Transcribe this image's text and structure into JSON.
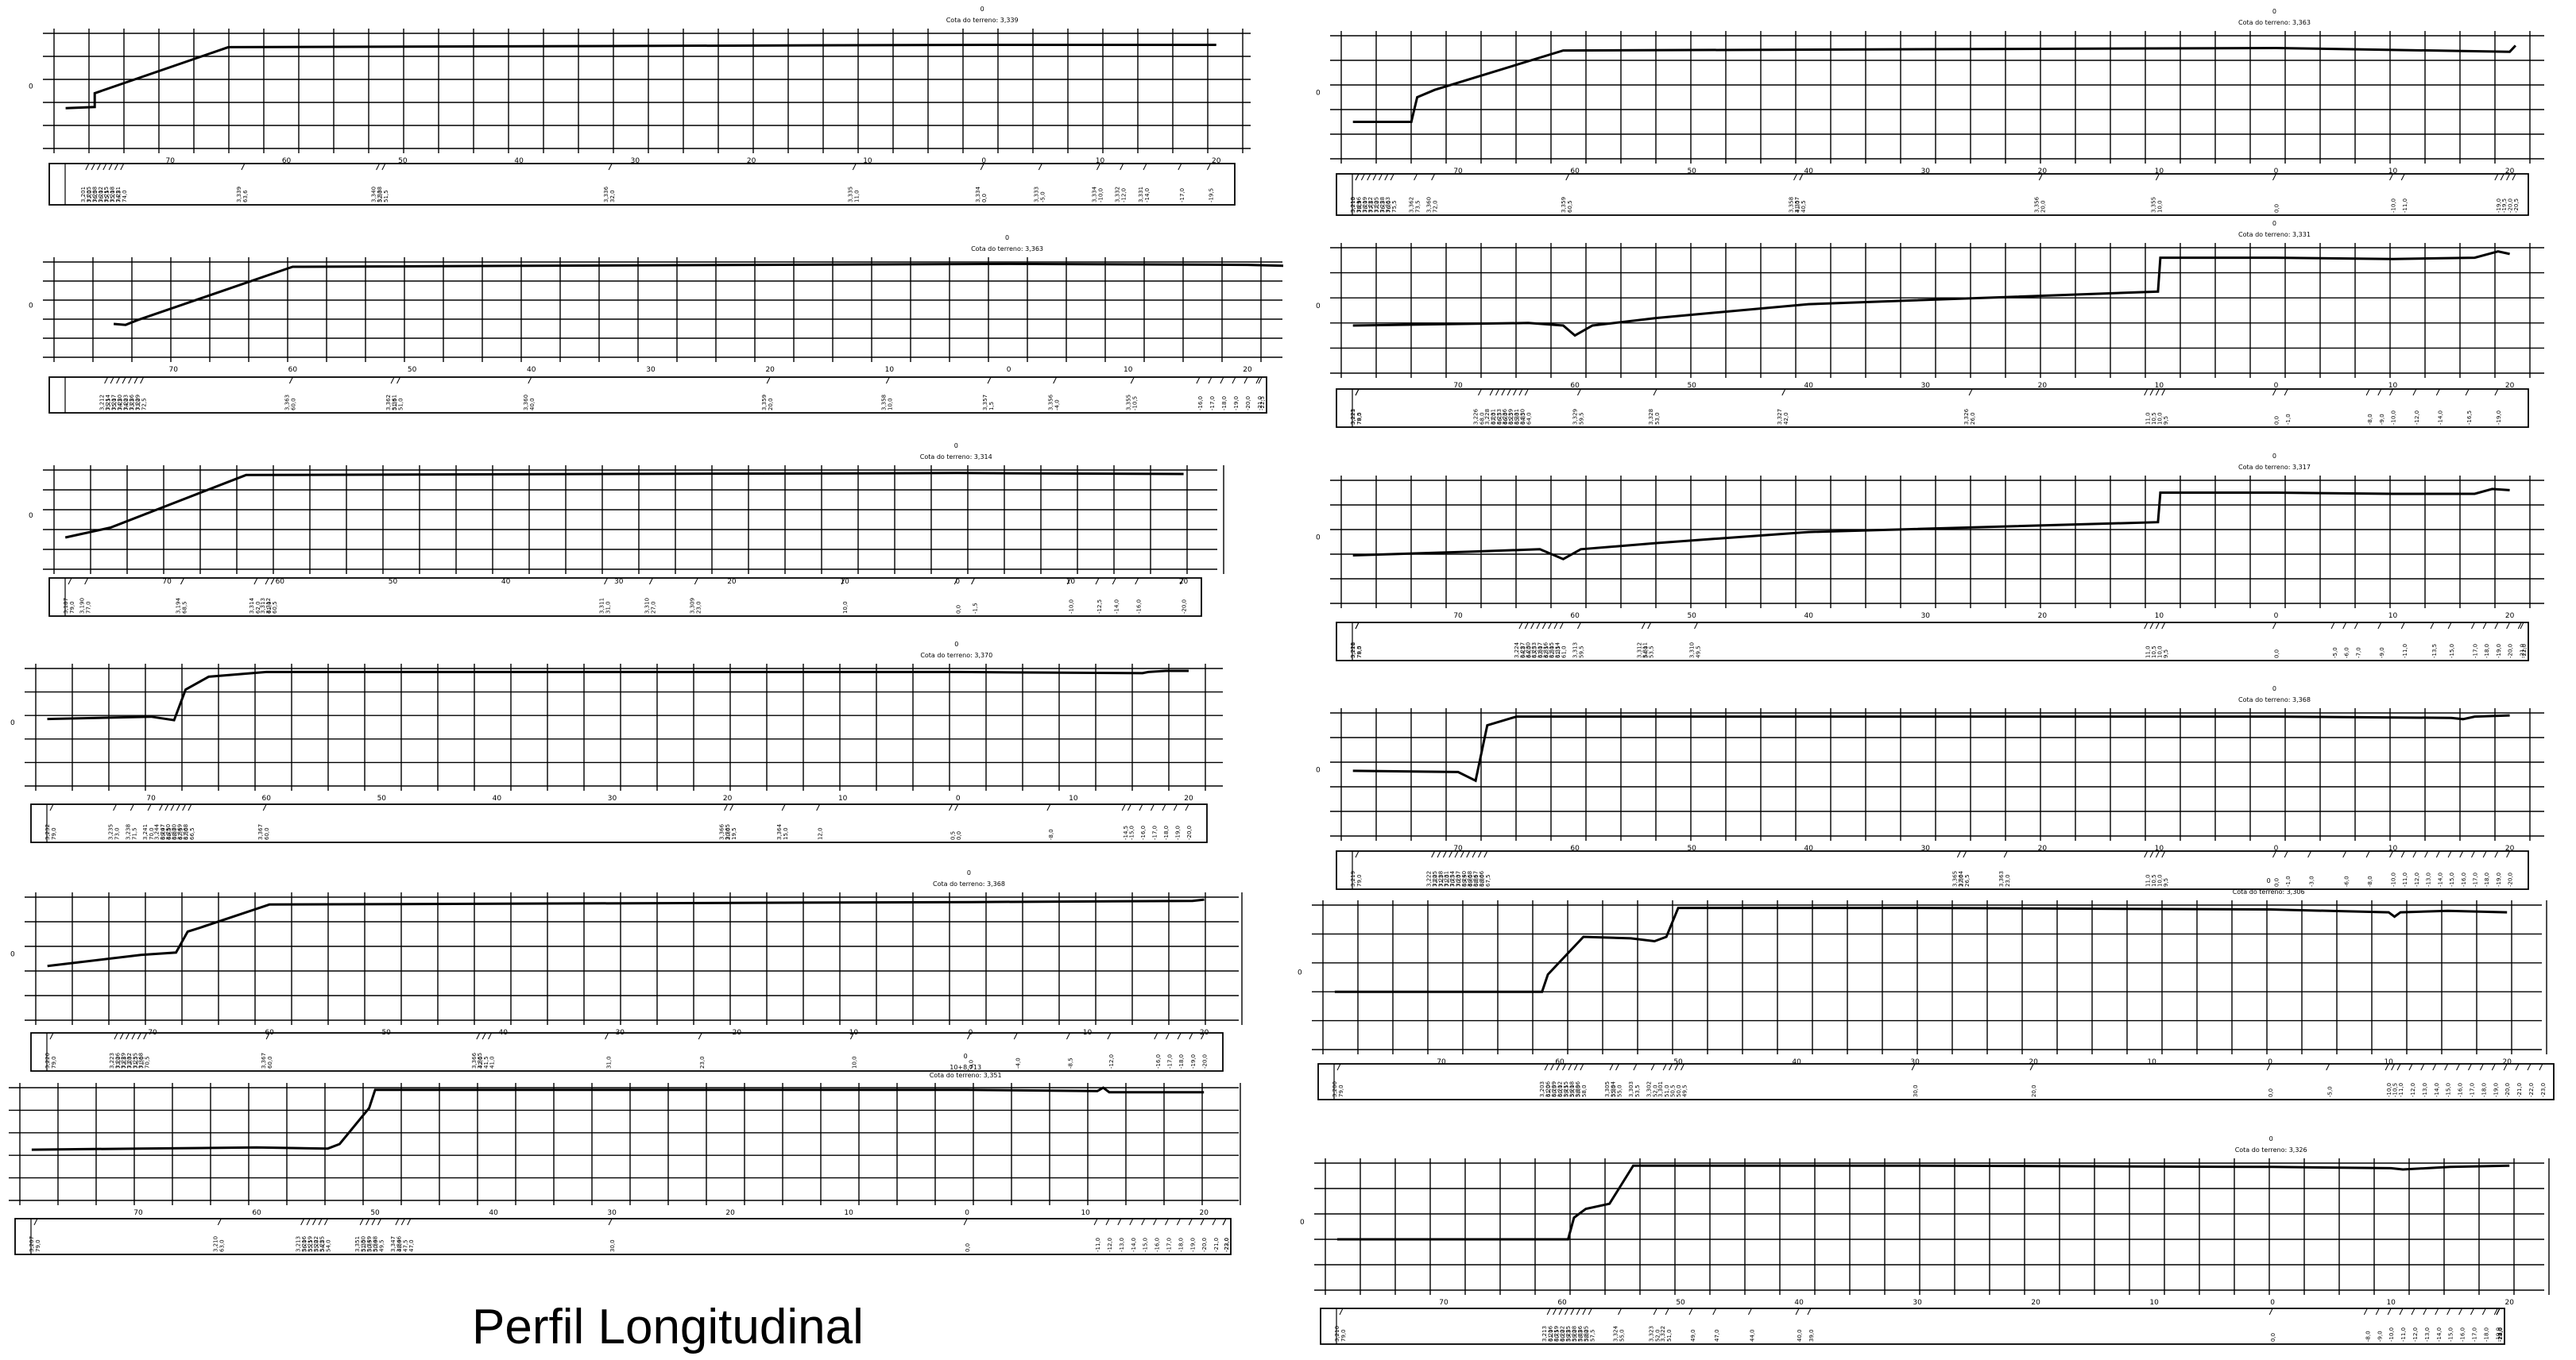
{
  "title": "Perfil Longitudinal",
  "colors": {
    "line": "#000000",
    "background": "#ffffff"
  },
  "panels": [
    {
      "terrain_label": "Cota do terreno: 3,339",
      "x_ticks": [
        "70",
        "60",
        "50",
        "40",
        "30",
        "20",
        "10",
        "0",
        "10",
        "20"
      ],
      "profile": [
        [
          79,
          0.35
        ],
        [
          76.5,
          0.36
        ],
        [
          76.5,
          0.48
        ],
        [
          65,
          0.88
        ],
        [
          0,
          0.9
        ],
        [
          -20,
          0.9
        ]
      ],
      "cota_tags": [
        "3,201",
        "3,205",
        "3,208",
        "3,212",
        "3,215",
        "3,218",
        "3,221",
        "3,339",
        "3,340",
        "3,338",
        "3,336",
        "3,335",
        "3,334",
        "3,333",
        "3,334",
        "3,332",
        "3,331"
      ],
      "distance_tags": [
        "77,0",
        "76,5",
        "76,0",
        "75,5",
        "75,0",
        "74,5",
        "74,0",
        "63,6",
        "52,0",
        "51,5",
        "32,0",
        "11,0",
        "0,0",
        "-5,0",
        "-10,0",
        "-12,0",
        "-14,0",
        "-17,0",
        "-19,5"
      ]
    },
    {
      "terrain_label": "Cota do terreno: 3,363",
      "x_ticks": [
        "70",
        "60",
        "50",
        "40",
        "30",
        "20",
        "10",
        "0",
        "10",
        "20"
      ],
      "profile": [
        [
          79,
          0.3
        ],
        [
          74,
          0.3
        ],
        [
          73.5,
          0.5
        ],
        [
          72,
          0.56
        ],
        [
          61,
          0.88
        ],
        [
          0,
          0.9
        ],
        [
          -20,
          0.87
        ],
        [
          -20.5,
          0.92
        ]
      ],
      "cota_tags": [
        "3,210",
        "3,213",
        "3,216",
        "3,219",
        "3,222",
        "3,225",
        "3,228",
        "3,363",
        "3,362",
        "3,360",
        "3,359",
        "3,358",
        "3,357",
        "3,356",
        "3,355"
      ],
      "distance_tags": [
        "78,9",
        "78,5",
        "78,0",
        "77,5",
        "77,0",
        "76,5",
        "76,0",
        "75,5",
        "73,5",
        "72,0",
        "60,5",
        "41,0",
        "40,5",
        "20,0",
        "10,0",
        "0,0",
        "-10,0",
        "-11,0",
        "-19,0",
        "-19,5",
        "-20,0",
        "-20,5"
      ]
    },
    {
      "terrain_label": "Cota do terreno: 3,363",
      "x_ticks": [
        "70",
        "60",
        "50",
        "40",
        "30",
        "20",
        "10",
        "0",
        "10",
        "20"
      ],
      "profile": [
        [
          75,
          0.35
        ],
        [
          74,
          0.34
        ],
        [
          73,
          0.39
        ],
        [
          60,
          0.95
        ],
        [
          0,
          0.98
        ],
        [
          -20,
          0.97
        ],
        [
          -23,
          0.96
        ]
      ],
      "cota_tags": [
        "3,212",
        "3,214",
        "3,217",
        "3,220",
        "3,223",
        "3,226",
        "3,229",
        "3,363",
        "3,362",
        "3,361",
        "3,360",
        "3,359",
        "3,358",
        "3,357",
        "3,356",
        "3,355"
      ],
      "distance_tags": [
        "75,5",
        "75,0",
        "74,5",
        "74,0",
        "73,5",
        "73,0",
        "72,5",
        "60,0",
        "51,5",
        "51,0",
        "40,0",
        "20,0",
        "10,0",
        "1,5",
        "-4,0",
        "-10,5",
        "-16,0",
        "-17,0",
        "-18,0",
        "-19,0",
        "-20,0",
        "-21,0",
        "-22,5"
      ]
    },
    {
      "terrain_label": "Cota do terreno: 3,331",
      "x_ticks": [
        "70",
        "60",
        "50",
        "40",
        "30",
        "20",
        "10",
        "0",
        "10",
        "20"
      ],
      "profile": [
        [
          79,
          0.38
        ],
        [
          64,
          0.4
        ],
        [
          61,
          0.38
        ],
        [
          60,
          0.3
        ],
        [
          58.5,
          0.38
        ],
        [
          53,
          0.44
        ],
        [
          40,
          0.55
        ],
        [
          10.1,
          0.65
        ],
        [
          9.9,
          0.92
        ],
        [
          0,
          0.92
        ],
        [
          -10,
          0.91
        ],
        [
          -17,
          0.92
        ],
        [
          -19,
          0.97
        ],
        [
          -20,
          0.95
        ]
      ],
      "cota_tags": [
        "3,221",
        "3,223",
        "3,226",
        "3,228",
        "3,231",
        "3,233",
        "3,236",
        "3,239",
        "3,331",
        "3,330",
        "3,329",
        "3,328",
        "3,327",
        "3,326"
      ],
      "distance_tags": [
        "79,0",
        "78,5",
        "68,0",
        "67,0",
        "66,5",
        "66,0",
        "65,5",
        "65,0",
        "64,5",
        "64,0",
        "59,5",
        "53,0",
        "42,0",
        "26,0",
        "11,0",
        "10,5",
        "10,0",
        "9,5",
        "0,0",
        "-1,0",
        "-8,0",
        "-9,0",
        "-10,0",
        "-12,0",
        "-14,0",
        "-16,5",
        "-19,0"
      ]
    },
    {
      "terrain_label": "Cota do terreno: 3,314",
      "x_ticks": [
        "70",
        "60",
        "50",
        "40",
        "30",
        "20",
        "10",
        "0",
        "10",
        "20"
      ],
      "profile": [
        [
          79,
          0.32
        ],
        [
          75,
          0.42
        ],
        [
          63,
          0.95
        ],
        [
          0,
          0.97
        ],
        [
          -20,
          0.96
        ]
      ],
      "cota_tags": [
        "3,187",
        "3,190",
        "3,194",
        "3,314",
        "3,313",
        "3,312",
        "3,311",
        "3,310",
        "3,309"
      ],
      "distance_tags": [
        "79,0",
        "77,0",
        "68,5",
        "62,0",
        "61,0",
        "60,5",
        "31,0",
        "27,0",
        "23,0",
        "10,0",
        "0,0",
        "-1,5",
        "-10,0",
        "-12,5",
        "-14,0",
        "-16,0",
        "-20,0"
      ]
    },
    {
      "terrain_label": "Cota do terreno: 3,317",
      "x_ticks": [
        "70",
        "60",
        "50",
        "40",
        "30",
        "20",
        "10",
        "0",
        "10",
        "20"
      ],
      "profile": [
        [
          79,
          0.39
        ],
        [
          69,
          0.42
        ],
        [
          63,
          0.44
        ],
        [
          61,
          0.36
        ],
        [
          59.5,
          0.44
        ],
        [
          53,
          0.49
        ],
        [
          40,
          0.58
        ],
        [
          10.1,
          0.66
        ],
        [
          9.9,
          0.9
        ],
        [
          0,
          0.9
        ],
        [
          -10,
          0.89
        ],
        [
          -17,
          0.89
        ],
        [
          -18.5,
          0.93
        ],
        [
          -20,
          0.92
        ]
      ],
      "cota_tags": [
        "3,218",
        "3,221",
        "3,224",
        "3,227",
        "3,230",
        "3,233",
        "3,317",
        "3,316",
        "3,315",
        "3,314",
        "3,313",
        "3,312",
        "3,311",
        "3,310"
      ],
      "distance_tags": [
        "79,0",
        "78,5",
        "64,5",
        "64,0",
        "63,5",
        "63,0",
        "62,5",
        "62,0",
        "61,5",
        "61,0",
        "59,5",
        "54,0",
        "53,5",
        "49,5",
        "11,0",
        "10,5",
        "10,0",
        "9,5",
        "0,0",
        "-5,0",
        "-6,0",
        "-7,0",
        "-9,0",
        "-11,0",
        "-13,5",
        "-15,0",
        "-17,0",
        "-18,0",
        "-19,0",
        "-20,0",
        "-21,0",
        "-22,0"
      ]
    },
    {
      "terrain_label": "Cota do terreno: 3,370",
      "x_ticks": [
        "70",
        "60",
        "50",
        "40",
        "30",
        "20",
        "10",
        "0",
        "10",
        "20"
      ],
      "profile": [
        [
          79,
          0.57
        ],
        [
          70,
          0.59
        ],
        [
          68,
          0.56
        ],
        [
          67,
          0.82
        ],
        [
          65,
          0.93
        ],
        [
          60,
          0.97
        ],
        [
          0,
          0.97
        ],
        [
          -16,
          0.96
        ],
        [
          -16.5,
          0.97
        ],
        [
          -18,
          0.98
        ],
        [
          -20,
          0.98
        ]
      ],
      "cota_tags": [
        "3,232",
        "3,235",
        "3,238",
        "3,241",
        "3,244",
        "3,247",
        "3,250",
        "3,370",
        "3,369",
        "3,368",
        "3,367",
        "3,366",
        "3,365",
        "3,364"
      ],
      "distance_tags": [
        "79,0",
        "73,0",
        "71,5",
        "70,0",
        "69,0",
        "68,5",
        "68,0",
        "67,5",
        "67,0",
        "66,5",
        "60,0",
        "20,0",
        "19,5",
        "15,0",
        "12,0",
        "0,5",
        "0,0",
        "-8,0",
        "-14,5",
        "-15,0",
        "-16,0",
        "-17,0",
        "-18,0",
        "-19,0",
        "-20,0"
      ]
    },
    {
      "terrain_label": "Cota do terreno: 3,368",
      "x_ticks": [
        "70",
        "60",
        "50",
        "40",
        "30",
        "20",
        "10",
        "0",
        "10",
        "20"
      ],
      "profile": [
        [
          79,
          0.53
        ],
        [
          70,
          0.52
        ],
        [
          68.5,
          0.45
        ],
        [
          67.5,
          0.9
        ],
        [
          65,
          0.97
        ],
        [
          0,
          0.97
        ],
        [
          -15,
          0.96
        ],
        [
          -16,
          0.95
        ],
        [
          -17,
          0.97
        ],
        [
          -20,
          0.98
        ]
      ],
      "cota_tags": [
        "3,219",
        "3,222",
        "3,225",
        "3,228",
        "3,231",
        "3,234",
        "3,237",
        "3,240",
        "3,368",
        "3,367",
        "3,366",
        "3,365",
        "3,364",
        "3,363"
      ],
      "distance_tags": [
        "79,0",
        "72,0",
        "71,5",
        "71,0",
        "70,5",
        "70,0",
        "69,5",
        "69,0",
        "68,5",
        "68,0",
        "67,5",
        "27,0",
        "26,5",
        "23,0",
        "11,0",
        "10,5",
        "10,0",
        "9,5",
        "0,0",
        "-1,0",
        "-3,0",
        "-6,0",
        "-8,0",
        "-10,0",
        "-11,0",
        "-12,0",
        "-13,0",
        "-14,0",
        "-15,0",
        "-16,0",
        "-17,0",
        "-18,0",
        "-19,0",
        "-20,0"
      ]
    },
    {
      "terrain_label": "Cota do terreno: 3,368",
      "x_ticks": [
        "70",
        "60",
        "50",
        "40",
        "30",
        "20",
        "10",
        "0",
        "10",
        "20"
      ],
      "profile": [
        [
          79,
          0.44
        ],
        [
          71,
          0.53
        ],
        [
          68,
          0.55
        ],
        [
          67,
          0.72
        ],
        [
          66,
          0.75
        ],
        [
          60,
          0.94
        ],
        [
          0,
          0.96
        ],
        [
          -19,
          0.97
        ],
        [
          -20,
          0.98
        ]
      ],
      "cota_tags": [
        "3,220",
        "3,223",
        "3,226",
        "3,229",
        "3,232",
        "3,235",
        "3,368",
        "3,367",
        "3,366",
        "3,365"
      ],
      "distance_tags": [
        "79,0",
        "73,0",
        "72,5",
        "72,0",
        "71,5",
        "71,0",
        "70,5",
        "60,0",
        "42,0",
        "41,5",
        "41,0",
        "31,0",
        "23,0",
        "10,0",
        "0,0",
        "-4,0",
        "-8,5",
        "-12,0",
        "-16,0",
        "-17,0",
        "-18,0",
        "-19,0",
        "-20,0"
      ]
    },
    {
      "terrain_label": "Cota do terreno: 3,306",
      "x_ticks": [
        "70",
        "60",
        "50",
        "40",
        "30",
        "20",
        "10",
        "0",
        "10",
        "20"
      ],
      "profile": [
        [
          79,
          0.4
        ],
        [
          62,
          0.4
        ],
        [
          61.5,
          0.4
        ],
        [
          61,
          0.52
        ],
        [
          58,
          0.78
        ],
        [
          54,
          0.77
        ],
        [
          52,
          0.75
        ],
        [
          51,
          0.78
        ],
        [
          50,
          0.98
        ],
        [
          30,
          0.98
        ],
        [
          0,
          0.97
        ],
        [
          -10,
          0.95
        ],
        [
          -10.5,
          0.92
        ],
        [
          -11,
          0.95
        ],
        [
          -15,
          0.96
        ],
        [
          -20,
          0.95
        ]
      ],
      "cota_tags": [
        "3,200",
        "3,203",
        "3,206",
        "3,209",
        "3,212",
        "3,215",
        "3,218",
        "3,306",
        "3,305",
        "3,304",
        "3,303",
        "3,302",
        "3,301"
      ],
      "distance_tags": [
        "79,0",
        "61,0",
        "60,5",
        "60,0",
        "59,5",
        "59,0",
        "58,5",
        "58,0",
        "55,5",
        "55,0",
        "53,5",
        "52,0",
        "51,0",
        "50,5",
        "50,0",
        "49,5",
        "30,0",
        "20,0",
        "0,0",
        "-5,0",
        "-10,0",
        "-10,5",
        "-11,0",
        "-12,0",
        "-13,0",
        "-14,0",
        "-15,0",
        "-16,0",
        "-17,0",
        "-18,0",
        "-19,0",
        "-20,0",
        "-21,0",
        "-22,0",
        "-23,0"
      ]
    },
    {
      "terrain_label": "10+8,713\nCota do terreno: 3,351",
      "x_ticks": [
        "70",
        "60",
        "50",
        "40",
        "30",
        "20",
        "10",
        "0",
        "10",
        "20"
      ],
      "profile": [
        [
          79,
          0.45
        ],
        [
          70,
          0.46
        ],
        [
          60,
          0.47
        ],
        [
          54,
          0.46
        ],
        [
          53,
          0.5
        ],
        [
          50.5,
          0.82
        ],
        [
          50,
          0.98
        ],
        [
          30,
          0.98
        ],
        [
          0,
          0.98
        ],
        [
          -11,
          0.97
        ],
        [
          -11.5,
          1.0
        ],
        [
          -12,
          0.96
        ],
        [
          -20,
          0.96
        ]
      ],
      "cota_tags": [
        "3,207",
        "3,210",
        "3,213",
        "3,216",
        "3,219",
        "3,222",
        "3,225",
        "3,351",
        "3,350",
        "3,349",
        "3,348",
        "3,347",
        "3,346"
      ],
      "distance_tags": [
        "79,0",
        "63,0",
        "56,0",
        "55,5",
        "55,0",
        "54,5",
        "54,0",
        "51,0",
        "50,5",
        "50,0",
        "49,5",
        "48,0",
        "47,5",
        "47,0",
        "30,0",
        "0,0",
        "-11,0",
        "-12,0",
        "-13,0",
        "-14,0",
        "-15,0",
        "-16,0",
        "-17,0",
        "-18,0",
        "-19,0",
        "-20,0",
        "-21,0",
        "-22,0",
        "-23,0"
      ]
    },
    {
      "terrain_label": "Cota do terreno: 3,326",
      "x_ticks": [
        "70",
        "60",
        "50",
        "40",
        "30",
        "20",
        "10",
        "0",
        "10",
        "20"
      ],
      "profile": [
        [
          79,
          0.4
        ],
        [
          60,
          0.4
        ],
        [
          59.5,
          0.4
        ],
        [
          59,
          0.57
        ],
        [
          58,
          0.64
        ],
        [
          56,
          0.68
        ],
        [
          54,
          0.98
        ],
        [
          30,
          0.98
        ],
        [
          0,
          0.97
        ],
        [
          -10,
          0.96
        ],
        [
          -11,
          0.95
        ],
        [
          -15,
          0.97
        ],
        [
          -20,
          0.98
        ]
      ],
      "cota_tags": [
        "3,210",
        "3,213",
        "3,216",
        "3,219",
        "3,222",
        "3,225",
        "3,228",
        "3,326",
        "3,325",
        "3,324",
        "3,323",
        "3,322"
      ],
      "distance_tags": [
        "79,0",
        "61,0",
        "60,5",
        "60,0",
        "59,5",
        "59,0",
        "58,5",
        "58,0",
        "57,5",
        "55,0",
        "52,0",
        "51,0",
        "49,0",
        "47,0",
        "44,0",
        "40,0",
        "39,0",
        "0,0",
        "-8,0",
        "-9,0",
        "-10,0",
        "-11,0",
        "-12,0",
        "-13,0",
        "-14,0",
        "-15,0",
        "-16,0",
        "-17,0",
        "-18,0",
        "-19,0",
        "-20,0",
        "-21,0",
        "-22,0",
        "-23,0"
      ]
    }
  ]
}
